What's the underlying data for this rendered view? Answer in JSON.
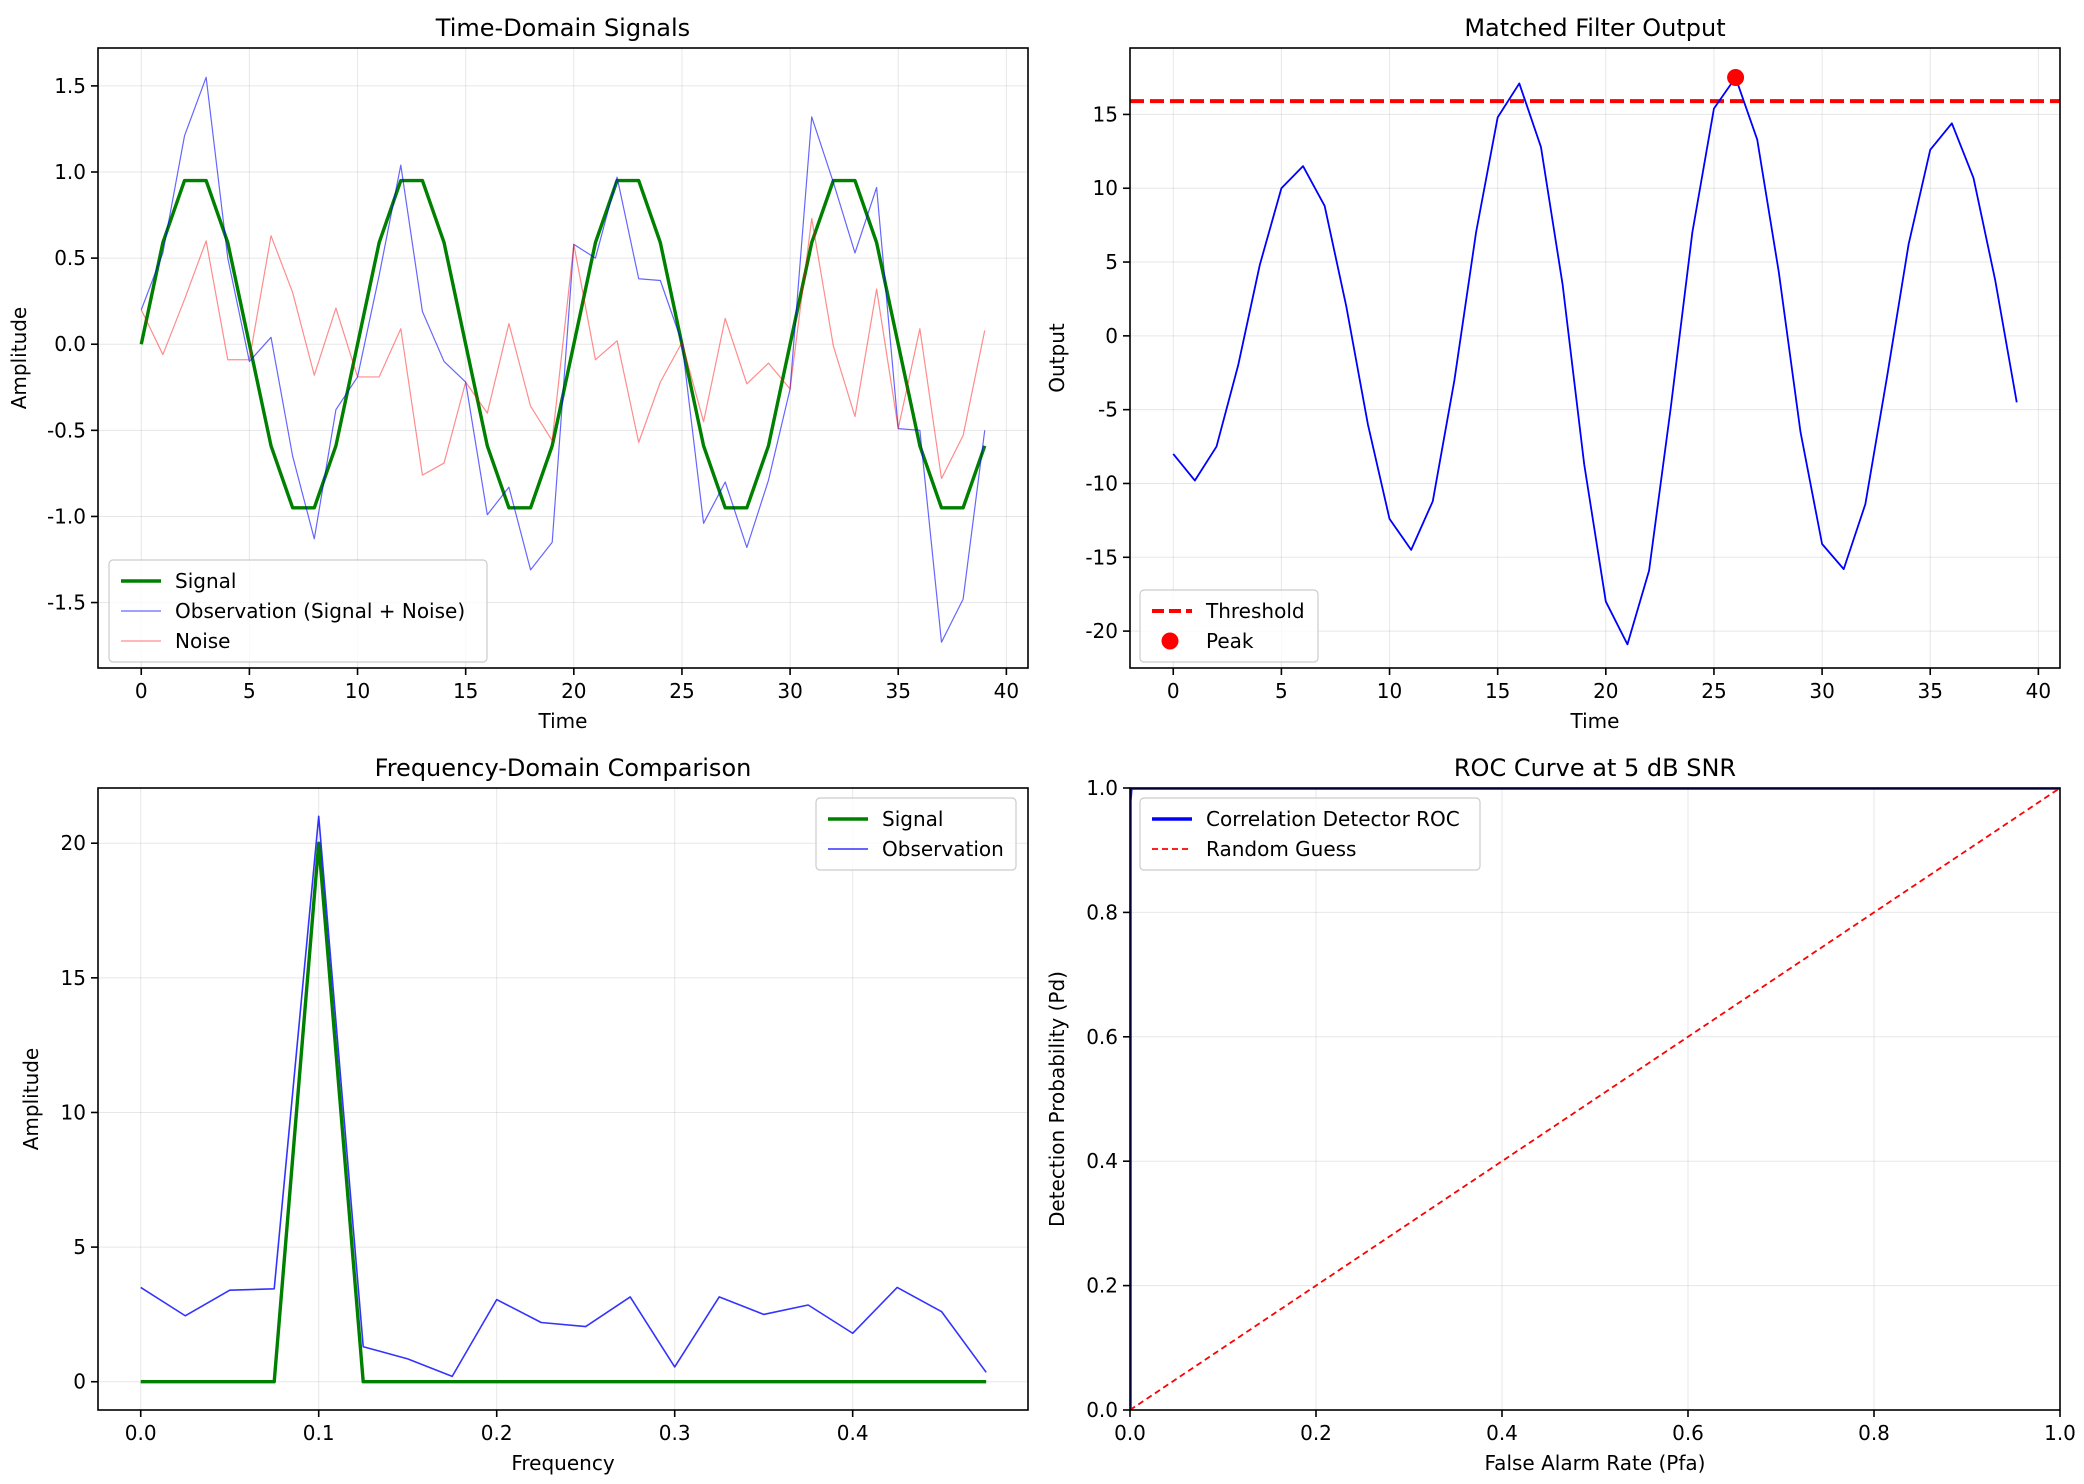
{
  "chart_data": [
    {
      "type": "line",
      "title": "Time-Domain Signals",
      "xlabel": "Time",
      "ylabel": "Amplitude",
      "xlim": [
        -2,
        41
      ],
      "ylim": [
        -1.88,
        1.72
      ],
      "xticks": [
        0,
        5,
        10,
        15,
        20,
        25,
        30,
        35,
        40
      ],
      "yticks": [
        1.5,
        1.0,
        0.5,
        0.0,
        -0.5,
        -1.0,
        -1.5
      ],
      "ytick_labels": [
        "1.5",
        "1.0",
        "0.5",
        "0.0",
        "-0.5",
        "-1.0",
        "-1.5"
      ],
      "grid": true,
      "legend_position": "lower-left",
      "x": [
        0,
        1,
        2,
        3,
        4,
        5,
        6,
        7,
        8,
        9,
        10,
        11,
        12,
        13,
        14,
        15,
        16,
        17,
        18,
        19,
        20,
        21,
        22,
        23,
        24,
        25,
        26,
        27,
        28,
        29,
        30,
        31,
        32,
        33,
        34,
        35,
        36,
        37,
        38,
        39
      ],
      "series": [
        {
          "name": "Signal",
          "color": "#008000",
          "width": 3.4,
          "opacity": 1,
          "values": [
            0.0,
            0.59,
            0.95,
            0.95,
            0.59,
            0.0,
            -0.59,
            -0.95,
            -0.95,
            -0.59,
            0.0,
            0.59,
            0.95,
            0.95,
            0.59,
            0.0,
            -0.59,
            -0.95,
            -0.95,
            -0.59,
            0.0,
            0.59,
            0.95,
            0.95,
            0.59,
            0.0,
            -0.59,
            -0.95,
            -0.95,
            -0.59,
            0.0,
            0.59,
            0.95,
            0.95,
            0.59,
            0.0,
            -0.59,
            -0.95,
            -0.95,
            -0.59
          ]
        },
        {
          "name": "Observation (Signal + Noise)",
          "color": "#0000ff",
          "width": 1.2,
          "opacity": 0.6,
          "values": [
            0.2,
            0.53,
            1.21,
            1.55,
            0.5,
            -0.1,
            0.04,
            -0.65,
            -1.13,
            -0.38,
            -0.19,
            0.4,
            1.04,
            0.19,
            -0.1,
            -0.22,
            -0.99,
            -0.83,
            -1.31,
            -1.15,
            0.58,
            0.5,
            0.97,
            0.38,
            0.37,
            0.01,
            -1.04,
            -0.8,
            -1.18,
            -0.79,
            -0.26,
            1.32,
            0.94,
            0.53,
            0.91,
            -0.49,
            -0.5,
            -1.73,
            -1.48,
            -0.5
          ]
        },
        {
          "name": "Noise",
          "color": "#ff0000",
          "width": 1.2,
          "opacity": 0.45,
          "values": [
            0.2,
            -0.06,
            0.26,
            0.6,
            -0.09,
            -0.09,
            0.63,
            0.3,
            -0.18,
            0.21,
            -0.19,
            -0.19,
            0.09,
            -0.76,
            -0.69,
            -0.22,
            -0.4,
            0.12,
            -0.36,
            -0.56,
            0.58,
            -0.09,
            0.02,
            -0.57,
            -0.22,
            0.01,
            -0.45,
            0.15,
            -0.23,
            -0.11,
            -0.26,
            0.73,
            -0.01,
            -0.42,
            0.32,
            -0.49,
            0.09,
            -0.78,
            -0.53,
            0.08
          ]
        }
      ]
    },
    {
      "type": "line",
      "title": "Matched Filter Output",
      "xlabel": "Time",
      "ylabel": "Output",
      "xlim": [
        -2,
        41
      ],
      "ylim": [
        -22.5,
        19.5
      ],
      "xticks": [
        0,
        5,
        10,
        15,
        20,
        25,
        30,
        35,
        40
      ],
      "yticks": [
        15,
        10,
        5,
        0,
        -5,
        -10,
        -15,
        -20
      ],
      "ytick_labels": [
        "15",
        "10",
        "5",
        "0",
        "-5",
        "-10",
        "-15",
        "-20"
      ],
      "grid": true,
      "legend_position": "lower-left",
      "x": [
        0,
        1,
        2,
        3,
        4,
        5,
        6,
        7,
        8,
        9,
        10,
        11,
        12,
        13,
        14,
        15,
        16,
        17,
        18,
        19,
        20,
        21,
        22,
        23,
        24,
        25,
        26,
        27,
        28,
        29,
        30,
        31,
        32,
        33,
        34,
        35,
        36,
        37,
        38,
        39
      ],
      "series": [
        {
          "name": "",
          "color": "#0000ff",
          "width": 1.8,
          "opacity": 1,
          "values": [
            -8.0,
            -9.8,
            -7.5,
            -2.0,
            4.8,
            10.0,
            11.5,
            8.8,
            2.0,
            -6.0,
            -12.4,
            -14.5,
            -11.2,
            -3.0,
            7.0,
            14.8,
            17.1,
            12.8,
            3.5,
            -8.7,
            -18.0,
            -20.9,
            -15.9,
            -4.9,
            7.0,
            15.4,
            17.5,
            13.3,
            4.3,
            -6.5,
            -14.1,
            -15.8,
            -11.4,
            -2.8,
            6.2,
            12.6,
            14.4,
            10.7,
            3.8,
            -4.5
          ]
        }
      ],
      "threshold": {
        "name": "Threshold",
        "value": 15.9,
        "color": "#ff0000"
      },
      "peak": {
        "name": "Peak",
        "x": 26,
        "y": 17.5,
        "color": "#ff0000"
      }
    },
    {
      "type": "line",
      "title": "Frequency-Domain Comparison",
      "xlabel": "Frequency",
      "ylabel": "Amplitude",
      "xlim": [
        -0.024,
        0.4985
      ],
      "ylim": [
        -1.05,
        22.05
      ],
      "xticks": [
        0.0,
        0.1,
        0.2,
        0.3,
        0.4
      ],
      "xtick_labels": [
        "0.0",
        "0.1",
        "0.2",
        "0.3",
        "0.4"
      ],
      "yticks": [
        20,
        15,
        10,
        5,
        0
      ],
      "ytick_labels": [
        "20",
        "15",
        "10",
        "5",
        "0"
      ],
      "grid": true,
      "legend_position": "top-right",
      "x": [
        0.0,
        0.025,
        0.05,
        0.075,
        0.1,
        0.125,
        0.15,
        0.175,
        0.2,
        0.225,
        0.25,
        0.275,
        0.3,
        0.325,
        0.35,
        0.375,
        0.4,
        0.425,
        0.45,
        0.475
      ],
      "series": [
        {
          "name": "Signal",
          "color": "#008000",
          "width": 3.4,
          "opacity": 1,
          "values": [
            0,
            0,
            0,
            0,
            20.0,
            0,
            0,
            0,
            0,
            0,
            0,
            0,
            0,
            0,
            0,
            0,
            0,
            0,
            0,
            0
          ]
        },
        {
          "name": "Observation",
          "color": "#0000ff",
          "width": 1.6,
          "opacity": 0.8,
          "values": [
            3.5,
            2.45,
            3.4,
            3.45,
            21.0,
            1.3,
            0.85,
            0.2,
            3.05,
            2.2,
            2.05,
            3.15,
            0.55,
            3.15,
            2.5,
            2.85,
            1.8,
            3.5,
            2.6,
            0.35
          ]
        }
      ]
    },
    {
      "type": "line",
      "title": "ROC Curve at 5 dB SNR",
      "xlabel": "False Alarm Rate (Pfa)",
      "ylabel": "Detection Probability (Pd)",
      "xlim": [
        0,
        1
      ],
      "ylim": [
        0,
        1
      ],
      "xticks": [
        0.0,
        0.2,
        0.4,
        0.6,
        0.8,
        1.0
      ],
      "xtick_labels": [
        "0.0",
        "0.2",
        "0.4",
        "0.6",
        "0.8",
        "1.0"
      ],
      "yticks": [
        1.0,
        0.8,
        0.6,
        0.4,
        0.2,
        0.0
      ],
      "ytick_labels": [
        "1.0",
        "0.8",
        "0.6",
        "0.4",
        "0.2",
        "0.0"
      ],
      "grid": true,
      "legend_position": "top-left",
      "series": [
        {
          "name": "Correlation Detector ROC",
          "color": "#0000ff",
          "width": 3.4,
          "opacity": 1,
          "x": [
            0,
            0,
            0.001,
            1
          ],
          "values": [
            0,
            0.98,
            1,
            1
          ]
        },
        {
          "name": "Random Guess",
          "color": "#ff0000",
          "width": 1.8,
          "opacity": 1,
          "dash": true,
          "x": [
            0,
            1
          ],
          "values": [
            0,
            1
          ]
        }
      ]
    }
  ]
}
